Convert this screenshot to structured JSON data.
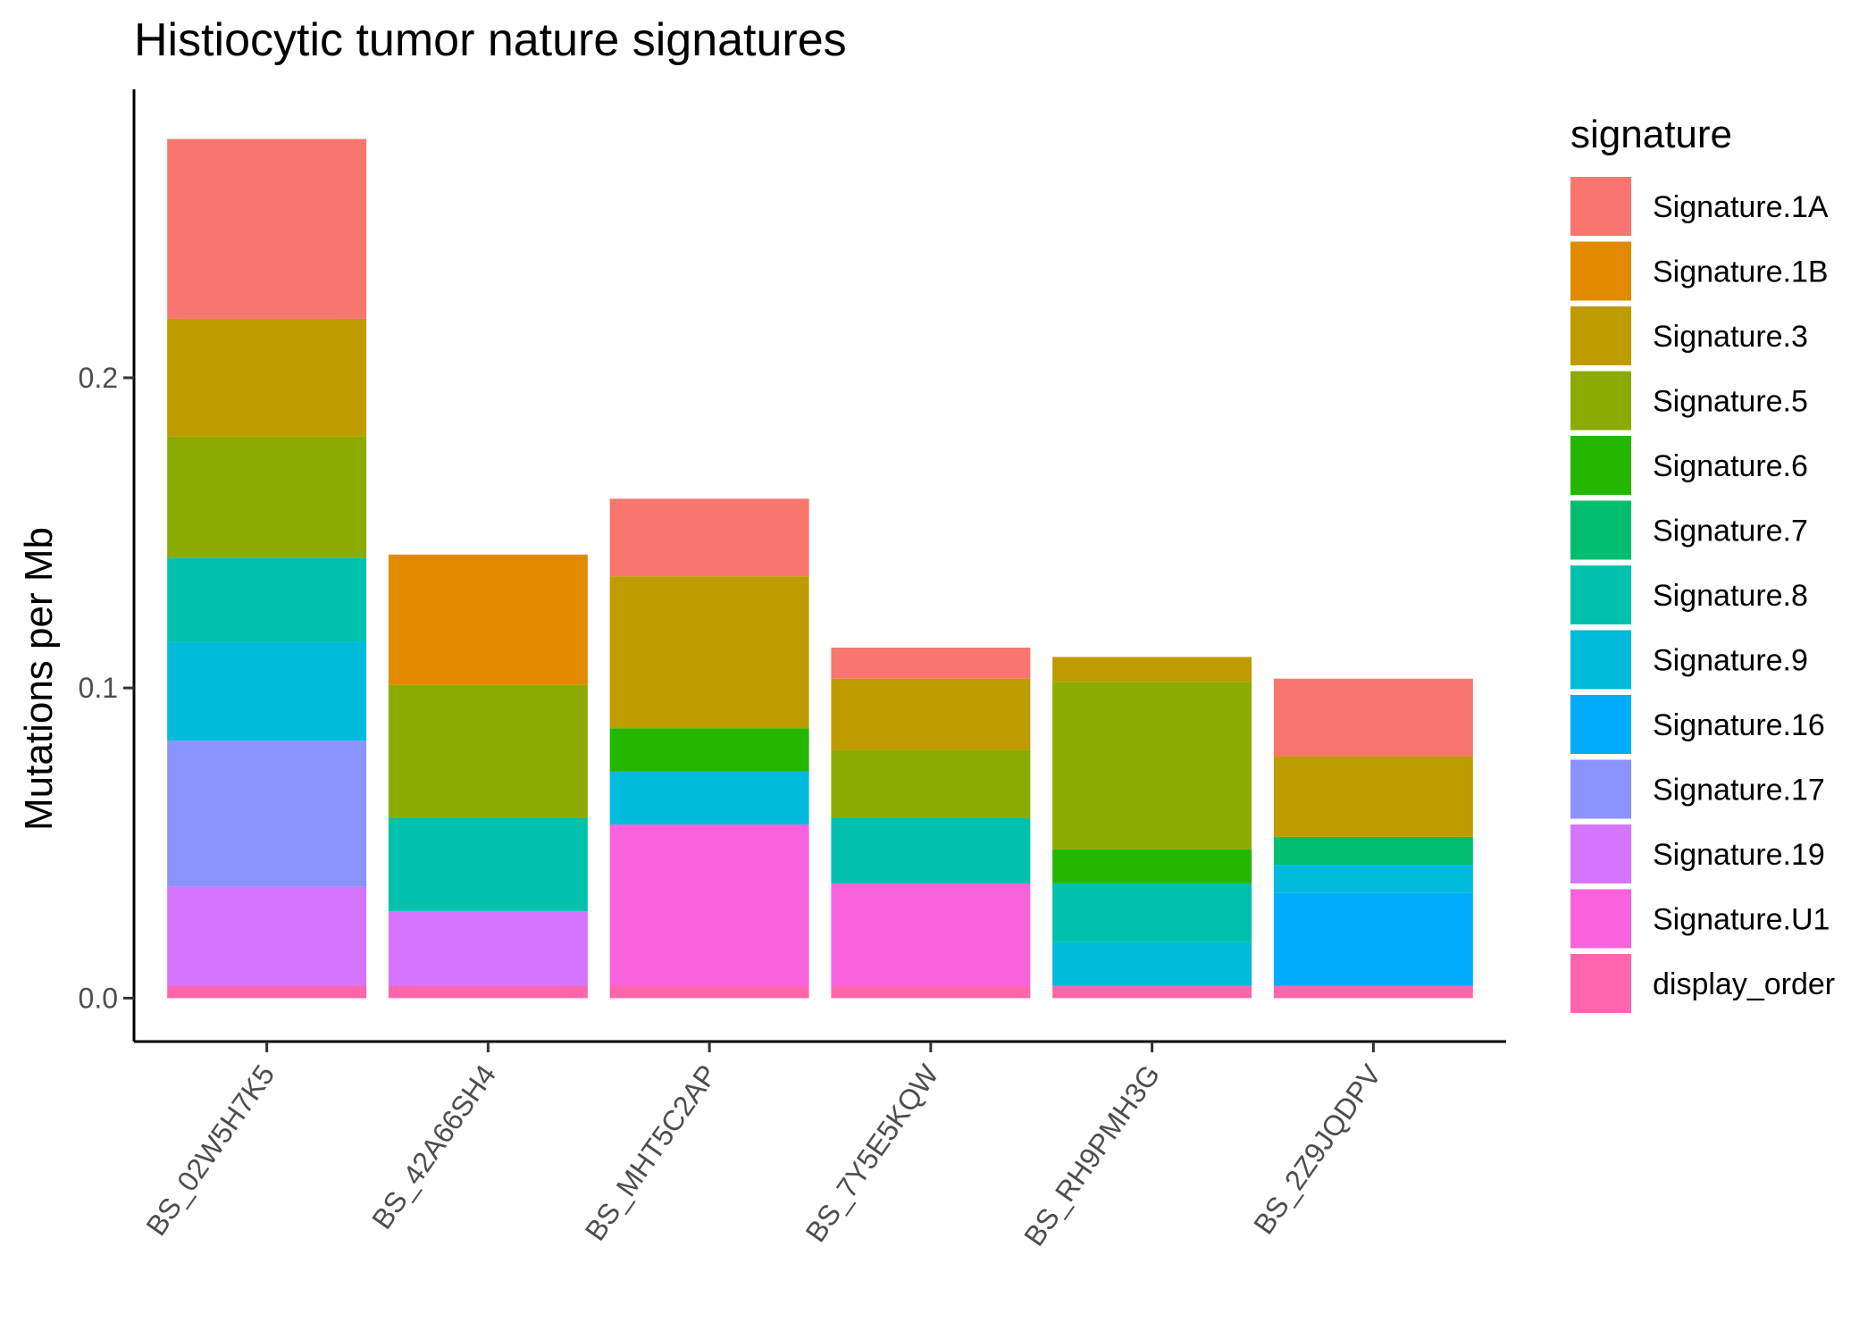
{
  "chart_data": {
    "type": "bar",
    "stacked": true,
    "title": "Histiocytic tumor nature signatures",
    "xlabel": "",
    "ylabel": "Mutations per Mb",
    "ylim": [
      -0.014,
      0.293
    ],
    "yticks": [
      0.0,
      0.1,
      0.2
    ],
    "ytick_labels": [
      "0.0",
      "0.1",
      "0.2"
    ],
    "grid": false,
    "legend_title": "signature",
    "legend_position": "right",
    "categories": [
      "BS_02W5H7K5",
      "BS_42A66SH4",
      "BS_MHT5C2AP",
      "BS_7Y5E5KQW",
      "BS_RH9PMH3G",
      "BS_2Z9JQDPV"
    ],
    "series": [
      {
        "name": "Signature.1A",
        "color": "#F8766D",
        "values": [
          0.058,
          0,
          0.025,
          0.01,
          0,
          0.025
        ]
      },
      {
        "name": "Signature.1B",
        "color": "#E18A00",
        "values": [
          0,
          0.042,
          0,
          0,
          0,
          0
        ]
      },
      {
        "name": "Signature.3",
        "color": "#BE9C00",
        "values": [
          0.038,
          0,
          0.049,
          0.023,
          0.008,
          0.026
        ]
      },
      {
        "name": "Signature.5",
        "color": "#8CAB00",
        "values": [
          0.039,
          0.043,
          0,
          0.022,
          0.054,
          0
        ]
      },
      {
        "name": "Signature.6",
        "color": "#24B700",
        "values": [
          0,
          0,
          0.014,
          0,
          0.011,
          0
        ]
      },
      {
        "name": "Signature.7",
        "color": "#00BE70",
        "values": [
          0,
          0,
          0,
          0,
          0,
          0.009
        ]
      },
      {
        "name": "Signature.8",
        "color": "#00C1AB",
        "values": [
          0.027,
          0.03,
          0,
          0.021,
          0.019,
          0
        ]
      },
      {
        "name": "Signature.9",
        "color": "#00BBDA",
        "values": [
          0.032,
          0,
          0.017,
          0,
          0.014,
          0.009
        ]
      },
      {
        "name": "Signature.16",
        "color": "#00ACFC",
        "values": [
          0,
          0,
          0,
          0,
          0,
          0.03
        ]
      },
      {
        "name": "Signature.17",
        "color": "#8B93FF",
        "values": [
          0.047,
          0,
          0,
          0,
          0,
          0
        ]
      },
      {
        "name": "Signature.19",
        "color": "#D575FE",
        "values": [
          0.032,
          0.024,
          0,
          0,
          0,
          0
        ]
      },
      {
        "name": "Signature.U1",
        "color": "#F962DD",
        "values": [
          0,
          0,
          0.052,
          0.033,
          0,
          0
        ]
      },
      {
        "name": "display_order",
        "color": "#FF65AC",
        "values": [
          0.004,
          0.004,
          0.004,
          0.004,
          0.004,
          0.004
        ]
      }
    ]
  }
}
